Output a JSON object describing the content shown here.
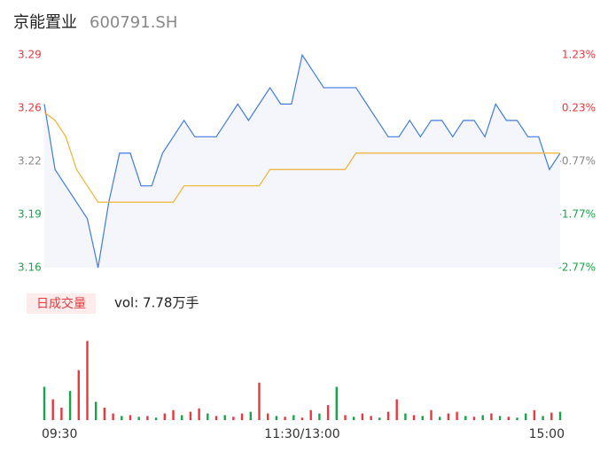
{
  "title": "京能置业",
  "subtitle": "600791.SH",
  "chart_data": [
    {
      "type": "line",
      "xlim": [
        0,
        240
      ],
      "x": [
        0,
        5,
        10,
        15,
        20,
        25,
        30,
        35,
        40,
        45,
        50,
        55,
        60,
        65,
        70,
        75,
        80,
        85,
        90,
        95,
        100,
        105,
        110,
        115,
        120,
        125,
        130,
        135,
        140,
        145,
        150,
        155,
        160,
        165,
        170,
        175,
        180,
        185,
        190,
        195,
        200,
        205,
        210,
        215,
        220,
        225,
        230,
        235,
        240
      ],
      "ylim": [
        3.16,
        3.29
      ],
      "yticks": [
        {
          "value": 3.29,
          "label": "3.29"
        },
        {
          "value": 3.2575,
          "label": "3.26"
        },
        {
          "value": 3.225,
          "label": "3.22"
        },
        {
          "value": 3.1925,
          "label": "3.19"
        },
        {
          "value": 3.16,
          "label": "3.16"
        }
      ],
      "y2lim": [
        -2.77,
        1.23
      ],
      "y2ticks": [
        {
          "value": 1.23,
          "label": "1.23%"
        },
        {
          "value": 0.23,
          "label": "0.23%"
        },
        {
          "value": -0.77,
          "label": "-0.77%"
        },
        {
          "value": -1.77,
          "label": "-1.77%"
        },
        {
          "value": -2.77,
          "label": "-2.77%"
        }
      ],
      "series": [
        {
          "color": "#3f7be0",
          "values": [
            3.26,
            3.22,
            3.21,
            3.2,
            3.19,
            3.16,
            3.2,
            3.23,
            3.23,
            3.21,
            3.21,
            3.23,
            3.24,
            3.25,
            3.24,
            3.24,
            3.24,
            3.25,
            3.26,
            3.25,
            3.26,
            3.27,
            3.26,
            3.26,
            3.29,
            3.28,
            3.27,
            3.27,
            3.27,
            3.27,
            3.26,
            3.25,
            3.24,
            3.24,
            3.25,
            3.24,
            3.25,
            3.25,
            3.24,
            3.25,
            3.25,
            3.24,
            3.26,
            3.25,
            3.25,
            3.24,
            3.24,
            3.22,
            3.23
          ]
        },
        {
          "color": "#f0b232",
          "values": [
            3.255,
            3.25,
            3.24,
            3.22,
            3.21,
            3.2,
            3.2,
            3.2,
            3.2,
            3.2,
            3.2,
            3.2,
            3.2,
            3.21,
            3.21,
            3.21,
            3.21,
            3.21,
            3.21,
            3.21,
            3.21,
            3.22,
            3.22,
            3.22,
            3.22,
            3.22,
            3.22,
            3.22,
            3.22,
            3.23,
            3.23,
            3.23,
            3.23,
            3.23,
            3.23,
            3.23,
            3.23,
            3.23,
            3.23,
            3.23,
            3.23,
            3.23,
            3.23,
            3.23,
            3.23,
            3.23,
            3.23,
            3.23,
            3.23
          ]
        }
      ]
    },
    {
      "type": "bar",
      "legend_label": "日成交量",
      "vol_label": "vol: 7.78万手",
      "xlim": [
        0,
        240
      ],
      "ylim": [
        0,
        100
      ],
      "xticks": [
        {
          "value": 0,
          "label": "09:30"
        },
        {
          "value": 120,
          "label": "11:30/13:00"
        },
        {
          "value": 240,
          "label": "15:00"
        }
      ],
      "x": [
        0,
        4,
        8,
        12,
        16,
        20,
        24,
        28,
        32,
        36,
        40,
        44,
        48,
        52,
        56,
        60,
        64,
        68,
        72,
        76,
        80,
        84,
        88,
        92,
        96,
        100,
        104,
        108,
        112,
        116,
        120,
        124,
        128,
        132,
        136,
        140,
        144,
        148,
        152,
        156,
        160,
        164,
        168,
        172,
        176,
        180,
        184,
        188,
        192,
        196,
        200,
        204,
        208,
        212,
        216,
        220,
        224,
        228,
        232,
        236,
        240
      ],
      "values": [
        40,
        25,
        15,
        35,
        60,
        95,
        22,
        15,
        8,
        5,
        6,
        4,
        5,
        3,
        8,
        12,
        6,
        10,
        14,
        8,
        5,
        6,
        4,
        8,
        10,
        45,
        8,
        5,
        4,
        6,
        3,
        12,
        8,
        18,
        40,
        6,
        4,
        8,
        5,
        3,
        10,
        25,
        8,
        6,
        5,
        12,
        4,
        8,
        10,
        5,
        4,
        6,
        8,
        5,
        4,
        3,
        8,
        12,
        5,
        9,
        10
      ],
      "colors": [
        "#1aa34a",
        "#e8383d",
        "#e8383d",
        "#1aa34a",
        "#e8383d",
        "#e8383d",
        "#1aa34a",
        "#e8383d",
        "#e8383d",
        "#1aa34a",
        "#e8383d",
        "#1aa34a",
        "#e8383d",
        "#1aa34a",
        "#e8383d",
        "#e8383d",
        "#1aa34a",
        "#e8383d",
        "#e8383d",
        "#1aa34a",
        "#e8383d",
        "#1aa34a",
        "#e8383d",
        "#e8383d",
        "#1aa34a",
        "#e8383d",
        "#e8383d",
        "#1aa34a",
        "#e8383d",
        "#1aa34a",
        "#e8383d",
        "#e8383d",
        "#1aa34a",
        "#e8383d",
        "#1aa34a",
        "#e8383d",
        "#1aa34a",
        "#e8383d",
        "#e8383d",
        "#1aa34a",
        "#e8383d",
        "#e8383d",
        "#1aa34a",
        "#e8383d",
        "#1aa34a",
        "#e8383d",
        "#1aa34a",
        "#e8383d",
        "#e8383d",
        "#1aa34a",
        "#e8383d",
        "#1aa34a",
        "#e8383d",
        "#1aa34a",
        "#e8383d",
        "#1aa34a",
        "#1aa34a",
        "#e8383d",
        "#1aa34a",
        "#e8383d",
        "#1aa34a"
      ]
    }
  ]
}
